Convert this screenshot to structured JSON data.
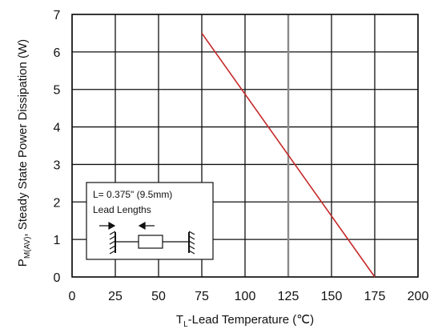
{
  "chart_data": {
    "type": "line",
    "title": "",
    "xlabel": {
      "prefix": "T",
      "subscript": "L",
      "suffix": "-Lead Temperature (℃)"
    },
    "ylabel": {
      "prefix": "P",
      "subscript": "M(AV)",
      "suffix": ", Steady State Power Dissipation (W)"
    },
    "xlim": [
      0,
      200
    ],
    "ylim": [
      0,
      7
    ],
    "x_ticks": [
      "0",
      "25",
      "50",
      "75",
      "100",
      "125",
      "150",
      "175",
      "200"
    ],
    "y_ticks": [
      "0",
      "1",
      "2",
      "3",
      "4",
      "5",
      "6",
      "7"
    ],
    "grid": true,
    "series": [
      {
        "x": [
          75,
          175
        ],
        "y": [
          6.5,
          0
        ],
        "color": "#c62828"
      }
    ],
    "highlight_vline": {
      "x": 125,
      "color": "#8a8a8a"
    },
    "annotation": {
      "line1": "L= 0.375\" (9.5mm)",
      "line2": "Lead Lengths"
    }
  }
}
